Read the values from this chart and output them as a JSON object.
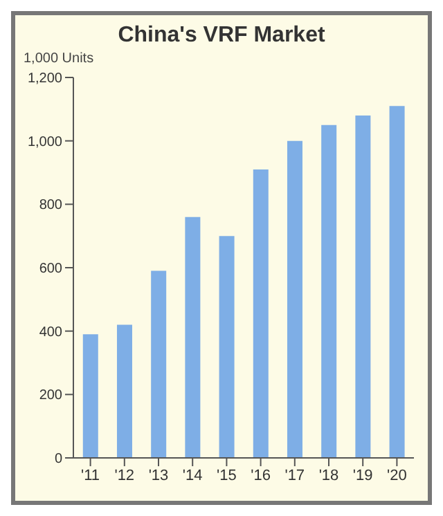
{
  "chart_data": {
    "type": "bar",
    "title": "China's VRF Market",
    "ylabel": "1,000 Units",
    "categories": [
      "'11",
      "'12",
      "'13",
      "'14",
      "'15",
      "'16",
      "'17",
      "'18",
      "'19",
      "'20"
    ],
    "values": [
      390,
      420,
      590,
      760,
      700,
      910,
      1000,
      1050,
      1080,
      1110
    ],
    "color": "#7eaee6",
    "ylim": [
      0,
      1200
    ],
    "yticks": [
      0,
      200,
      400,
      600,
      800,
      {
        "value": 1000,
        "label": "1,000"
      },
      {
        "value": 1200,
        "label": "1,200"
      }
    ],
    "grid": false
  }
}
